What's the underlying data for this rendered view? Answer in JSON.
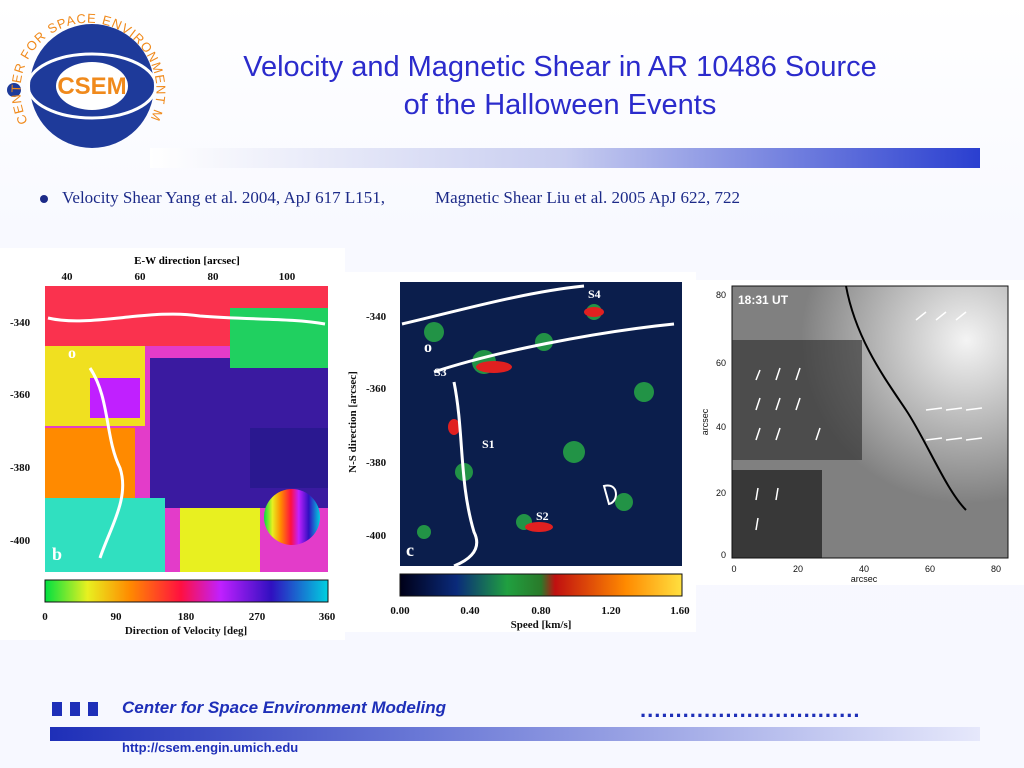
{
  "title": {
    "line1": "Velocity and Magnetic Shear in AR 10486 Source",
    "line2": "of the Halloween Events"
  },
  "logo": {
    "ring_text": "CENTER FOR SPACE ENVIRONMENT MODELING",
    "center_text": "CSEM"
  },
  "bullet": {
    "left": "Velocity Shear  Yang et al.  2004, ApJ 617 L151,",
    "right": "Magnetic Shear   Liu et al.  2005 ApJ 622, 722"
  },
  "panel_b": {
    "top_axis_title": "E-W direction [arcsec]",
    "top_ticks": [
      "40",
      "60",
      "80",
      "100"
    ],
    "left_ticks": [
      "-340",
      "-360",
      "-380",
      "-400"
    ],
    "marker_o": "o",
    "panel_letter": "b",
    "colorbar_ticks": [
      "0",
      "90",
      "180",
      "270",
      "360"
    ],
    "colorbar_title": "Direction of Velocity [deg]"
  },
  "panel_c": {
    "left_axis_title": "N-S direction [arcsec]",
    "left_ticks": [
      "-340",
      "-360",
      "-380",
      "-400"
    ],
    "marker_o": "o",
    "labels": [
      "S3",
      "S1",
      "S2",
      "S4"
    ],
    "panel_letter": "c",
    "colorbar_ticks": [
      "0.00",
      "0.40",
      "0.80",
      "1.20",
      "1.60"
    ],
    "colorbar_title": "Speed [km/s]"
  },
  "panel_mag": {
    "time": "18:31 UT",
    "y_ticks": [
      "80",
      "60",
      "40",
      "20",
      "0"
    ],
    "x_ticks": [
      "0",
      "20",
      "40",
      "60",
      "80"
    ],
    "xlabel": "arcsec",
    "ylabel": "arcsec"
  },
  "footer": {
    "org": "Center for Space Environment Modeling",
    "url": "http://csem.engin.umich.edu",
    "dots": "..............................."
  },
  "colors": {
    "title_blue": "#2b2bcc",
    "footer_blue": "#1e2fb8",
    "logo_blue": "#1e3a9a",
    "logo_orange": "#f08a1c"
  }
}
